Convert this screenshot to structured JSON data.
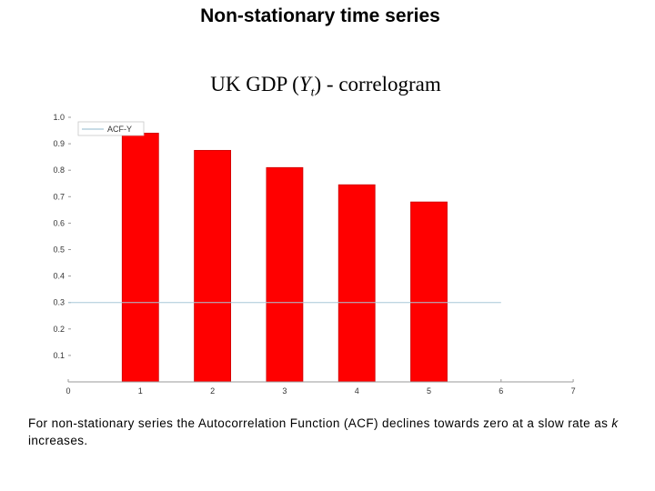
{
  "slide": {
    "title": "Non-stationary time series",
    "caption_pre": "For non-stationary series the Autocorrelation Function (ACF) declines towards zero at a slow rate as ",
    "caption_var": "k",
    "caption_post": " increases."
  },
  "chart_data": {
    "type": "bar",
    "title_pre": "UK GDP (",
    "title_var": "Y",
    "title_sub": "t",
    "title_post": ") - correlogram",
    "categories": [
      1,
      2,
      3,
      4,
      5
    ],
    "series": [
      {
        "name": "ACF-Y",
        "values": [
          0.94,
          0.875,
          0.81,
          0.745,
          0.68
        ]
      }
    ],
    "xlim": [
      0,
      7
    ],
    "ylim": [
      0,
      1.0
    ],
    "x_ticks": [
      "0",
      "1",
      "2",
      "3",
      "4",
      "5",
      "6",
      "7"
    ],
    "y_ticks": [
      "0.1",
      "0.2",
      "0.3",
      "0.4",
      "0.5",
      "0.6",
      "0.7",
      "0.8",
      "0.9",
      "1.0"
    ],
    "reference_line": 0.3,
    "legend_position": "top-left",
    "grid": false,
    "colors": {
      "bar": "#ff0000",
      "bar_edge": "#cc0000",
      "reference_line": "#a8c8d8",
      "axis": "#9a9a9a"
    }
  }
}
